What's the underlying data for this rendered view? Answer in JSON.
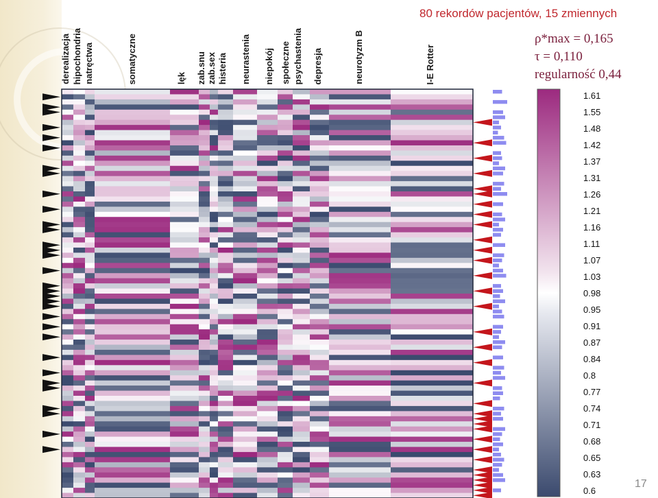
{
  "chart_data": {
    "type": "heatmap",
    "title": "80 rekordów pacjentów, 15 zmiennych",
    "n_records": 80,
    "variables": [
      {
        "label": "derealizacja"
      },
      {
        "label": "hipochondria"
      },
      {
        "label": "natręctwa"
      },
      {
        "label": "somatyczne"
      },
      {
        "label": "lęk"
      },
      {
        "label": "zab.snu"
      },
      {
        "label": "zab.sex"
      },
      {
        "label": "histeria"
      },
      {
        "label": "neurastenia"
      },
      {
        "label": "niepokój"
      },
      {
        "label": "społeczne"
      },
      {
        "label": "psychastenia"
      },
      {
        "label": "depresja"
      },
      {
        "label": "neurotyzm B"
      },
      {
        "label": "I-E Rotter"
      }
    ],
    "stats": {
      "rho_max_label": "ρ*max = 0,165",
      "tau_label": "τ = 0,110",
      "regularity_label": "regularność  0,44"
    },
    "colorbar": {
      "ticks": [
        "1.61",
        "1.55",
        "1.48",
        "1.42",
        "1.37",
        "1.31",
        "1.26",
        "1.21",
        "1.16",
        "1.11",
        "1.07",
        "1.03",
        "0.98",
        "0.95",
        "0.91",
        "0.87",
        "0.84",
        "0.8",
        "0.77",
        "0.74",
        "0.71",
        "0.68",
        "0.65",
        "0.63",
        "0.6"
      ],
      "range": [
        0.6,
        1.61
      ],
      "colormap": [
        "#9c2a7f",
        "#ffffff",
        "#3b4a6e"
      ]
    },
    "left_marker_rows": [
      1,
      3,
      4,
      7,
      9,
      11,
      15,
      16,
      20,
      23,
      26,
      27,
      30,
      31,
      32,
      35,
      38,
      39,
      40,
      41,
      42,
      44,
      46,
      48,
      52,
      55,
      57,
      58,
      62,
      63,
      67,
      70
    ],
    "right_marker_rows": [
      6,
      10,
      13,
      16,
      19,
      20,
      22,
      24,
      26,
      29,
      31,
      33,
      36,
      39,
      42,
      47,
      50,
      53,
      57,
      61,
      63,
      64,
      65,
      66,
      68,
      70,
      72,
      74,
      75,
      76,
      77,
      78,
      79
    ],
    "row_bar_values": [
      0.45,
      0.3,
      0.7,
      0.3,
      0.5,
      0.6,
      0.3,
      0.4,
      0.25,
      0.55,
      0.65,
      0.3,
      0.4,
      0.45,
      0.3,
      0.6,
      0.5,
      0.35,
      0.55,
      0.4,
      0.7,
      0.3,
      0.5,
      0.25,
      0.45,
      0.6,
      0.3,
      0.5,
      0.4,
      0.35,
      0.6,
      0.3,
      0.55,
      0.45,
      0.3,
      0.5,
      0.65,
      0.3,
      0.4,
      0.5,
      0.35,
      0.6,
      0.3,
      0.45,
      0.55,
      0.3,
      0.5,
      0.4,
      0.3,
      0.6,
      0.45,
      0.35,
      0.5,
      0.3,
      0.55,
      0.4,
      0.6,
      0.3,
      0.45,
      0.5,
      0.35,
      0.3,
      0.55,
      0.4,
      0.5,
      0.3,
      0.6,
      0.45,
      0.35,
      0.5,
      0.3,
      0.4,
      0.55,
      0.45,
      0.3,
      0.5,
      0.6,
      0.35,
      0.4,
      0.3
    ],
    "page_number": "17"
  }
}
